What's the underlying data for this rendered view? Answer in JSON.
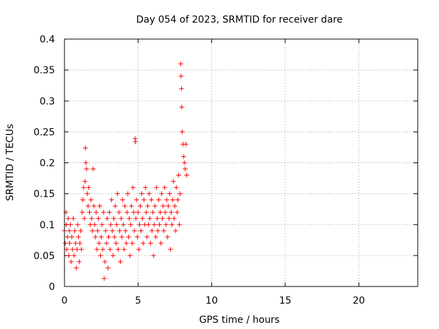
{
  "chart_data": {
    "type": "scatter",
    "title": "Day 054 of 2023, SRMTID for receiver dare",
    "xlabel": "GPS time / hours",
    "ylabel": "SRMTID / TECUs",
    "xlim": [
      0,
      24
    ],
    "ylim": [
      0,
      0.4
    ],
    "xticks": [
      0,
      5,
      10,
      15,
      20
    ],
    "xtick_labels": [
      "0",
      "5",
      "10",
      "15",
      "20"
    ],
    "yticks": [
      0,
      0.05,
      0.1,
      0.15,
      0.2,
      0.25,
      0.3,
      0.35,
      0.4
    ],
    "ytick_labels": [
      "0",
      "0.05",
      "0.1",
      "0.15",
      "0.2",
      "0.25",
      "0.3",
      "0.35",
      "0.4"
    ],
    "grid": true,
    "marker": "+",
    "color": "#ff0000",
    "series": [
      {
        "name": "SRMTID",
        "points": [
          [
            0.0,
            0.09
          ],
          [
            0.05,
            0.07
          ],
          [
            0.1,
            0.12
          ],
          [
            0.12,
            0.1
          ],
          [
            0.15,
            0.06
          ],
          [
            0.2,
            0.08
          ],
          [
            0.25,
            0.11
          ],
          [
            0.3,
            0.05
          ],
          [
            0.33,
            0.09
          ],
          [
            0.35,
            0.07
          ],
          [
            0.4,
            0.1
          ],
          [
            0.45,
            0.04
          ],
          [
            0.5,
            0.08
          ],
          [
            0.55,
            0.06
          ],
          [
            0.6,
            0.11
          ],
          [
            0.65,
            0.05
          ],
          [
            0.7,
            0.09
          ],
          [
            0.75,
            0.07
          ],
          [
            0.8,
            0.03
          ],
          [
            0.85,
            0.06
          ],
          [
            0.9,
            0.1
          ],
          [
            0.95,
            0.08
          ],
          [
            1.0,
            0.04
          ],
          [
            1.05,
            0.07
          ],
          [
            1.1,
            0.09
          ],
          [
            1.15,
            0.06
          ],
          [
            1.2,
            0.12
          ],
          [
            1.25,
            0.14
          ],
          [
            1.3,
            0.16
          ],
          [
            1.35,
            0.11
          ],
          [
            1.4,
            0.17
          ],
          [
            1.42,
            0.224
          ],
          [
            1.45,
            0.2
          ],
          [
            1.5,
            0.19
          ],
          [
            1.55,
            0.15
          ],
          [
            1.6,
            0.13
          ],
          [
            1.65,
            0.16
          ],
          [
            1.7,
            0.12
          ],
          [
            1.75,
            0.1
          ],
          [
            1.8,
            0.14
          ],
          [
            1.85,
            0.11
          ],
          [
            1.9,
            0.09
          ],
          [
            1.95,
            0.19
          ],
          [
            2.0,
            0.13
          ],
          [
            2.05,
            0.1
          ],
          [
            2.1,
            0.08
          ],
          [
            2.15,
            0.12
          ],
          [
            2.2,
            0.06
          ],
          [
            2.25,
            0.09
          ],
          [
            2.3,
            0.11
          ],
          [
            2.35,
            0.07
          ],
          [
            2.4,
            0.13
          ],
          [
            2.45,
            0.05
          ],
          [
            2.5,
            0.08
          ],
          [
            2.55,
            0.1
          ],
          [
            2.6,
            0.06
          ],
          [
            2.65,
            0.12
          ],
          [
            2.7,
            0.013
          ],
          [
            2.75,
            0.04
          ],
          [
            2.8,
            0.09
          ],
          [
            2.85,
            0.07
          ],
          [
            2.9,
            0.11
          ],
          [
            2.95,
            0.03
          ],
          [
            3.0,
            0.08
          ],
          [
            3.05,
            0.12
          ],
          [
            3.1,
            0.06
          ],
          [
            3.15,
            0.1
          ],
          [
            3.2,
            0.14
          ],
          [
            3.25,
            0.09
          ],
          [
            3.3,
            0.05
          ],
          [
            3.35,
            0.11
          ],
          [
            3.4,
            0.08
          ],
          [
            3.45,
            0.13
          ],
          [
            3.5,
            0.07
          ],
          [
            3.55,
            0.1
          ],
          [
            3.6,
            0.15
          ],
          [
            3.65,
            0.06
          ],
          [
            3.7,
            0.12
          ],
          [
            3.75,
            0.09
          ],
          [
            3.8,
            0.04
          ],
          [
            3.85,
            0.11
          ],
          [
            3.9,
            0.08
          ],
          [
            3.95,
            0.14
          ],
          [
            4.0,
            0.1
          ],
          [
            4.05,
            0.06
          ],
          [
            4.1,
            0.13
          ],
          [
            4.15,
            0.09
          ],
          [
            4.2,
            0.07
          ],
          [
            4.25,
            0.12
          ],
          [
            4.3,
            0.15
          ],
          [
            4.35,
            0.08
          ],
          [
            4.4,
            0.11
          ],
          [
            4.45,
            0.05
          ],
          [
            4.5,
            0.1
          ],
          [
            4.55,
            0.13
          ],
          [
            4.6,
            0.07
          ],
          [
            4.65,
            0.16
          ],
          [
            4.7,
            0.12
          ],
          [
            4.75,
            0.09
          ],
          [
            4.8,
            0.239
          ],
          [
            4.82,
            0.234
          ],
          [
            4.85,
            0.11
          ],
          [
            4.9,
            0.14
          ],
          [
            4.95,
            0.08
          ],
          [
            5.0,
            0.12
          ],
          [
            5.05,
            0.06
          ],
          [
            5.1,
            0.1
          ],
          [
            5.15,
            0.13
          ],
          [
            5.2,
            0.09
          ],
          [
            5.25,
            0.15
          ],
          [
            5.3,
            0.11
          ],
          [
            5.35,
            0.07
          ],
          [
            5.4,
            0.14
          ],
          [
            5.45,
            0.1
          ],
          [
            5.5,
            0.16
          ],
          [
            5.55,
            0.12
          ],
          [
            5.6,
            0.08
          ],
          [
            5.65,
            0.13
          ],
          [
            5.7,
            0.1
          ],
          [
            5.75,
            0.15
          ],
          [
            5.8,
            0.11
          ],
          [
            5.85,
            0.07
          ],
          [
            5.9,
            0.14
          ],
          [
            5.95,
            0.09
          ],
          [
            6.0,
            0.12
          ],
          [
            6.05,
            0.05
          ],
          [
            6.1,
            0.1
          ],
          [
            6.15,
            0.13
          ],
          [
            6.2,
            0.08
          ],
          [
            6.25,
            0.16
          ],
          [
            6.3,
            0.11
          ],
          [
            6.35,
            0.09
          ],
          [
            6.4,
            0.14
          ],
          [
            6.45,
            0.1
          ],
          [
            6.5,
            0.12
          ],
          [
            6.55,
            0.07
          ],
          [
            6.6,
            0.15
          ],
          [
            6.65,
            0.11
          ],
          [
            6.7,
            0.13
          ],
          [
            6.75,
            0.09
          ],
          [
            6.8,
            0.16
          ],
          [
            6.85,
            0.12
          ],
          [
            6.9,
            0.1
          ],
          [
            6.95,
            0.14
          ],
          [
            7.0,
            0.08
          ],
          [
            7.05,
            0.13
          ],
          [
            7.1,
            0.11
          ],
          [
            7.15,
            0.15
          ],
          [
            7.2,
            0.06
          ],
          [
            7.25,
            0.12
          ],
          [
            7.3,
            0.1
          ],
          [
            7.35,
            0.14
          ],
          [
            7.4,
            0.17
          ],
          [
            7.45,
            0.11
          ],
          [
            7.5,
            0.13
          ],
          [
            7.55,
            0.09
          ],
          [
            7.6,
            0.16
          ],
          [
            7.65,
            0.12
          ],
          [
            7.7,
            0.14
          ],
          [
            7.75,
            0.18
          ],
          [
            7.8,
            0.1
          ],
          [
            7.85,
            0.15
          ],
          [
            7.9,
            0.36
          ],
          [
            7.92,
            0.34
          ],
          [
            7.95,
            0.32
          ],
          [
            7.97,
            0.29
          ],
          [
            8.0,
            0.25
          ],
          [
            8.05,
            0.23
          ],
          [
            8.1,
            0.21
          ],
          [
            8.15,
            0.2
          ],
          [
            8.2,
            0.19
          ],
          [
            8.25,
            0.23
          ],
          [
            8.3,
            0.18
          ]
        ]
      }
    ]
  }
}
